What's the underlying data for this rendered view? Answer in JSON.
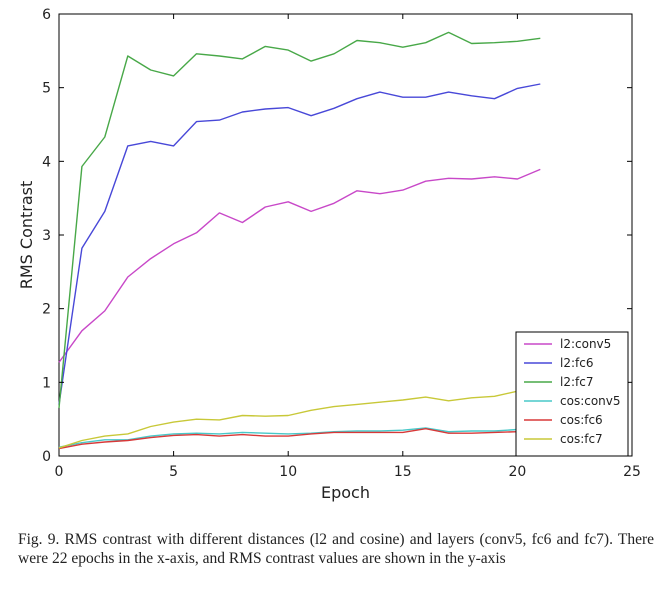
{
  "chart_data": {
    "type": "line",
    "title": "",
    "xlabel": "Epoch",
    "ylabel": "RMS Contrast",
    "xlim": [
      0,
      25
    ],
    "ylim": [
      0,
      6
    ],
    "xticks": [
      "0",
      "5",
      "10",
      "15",
      "20",
      "25"
    ],
    "yticks": [
      "0",
      "1",
      "2",
      "3",
      "4",
      "5",
      "6"
    ],
    "grid": false,
    "legend_position": "bottom-right",
    "x": [
      0,
      1,
      2,
      3,
      4,
      5,
      6,
      7,
      8,
      9,
      10,
      11,
      12,
      13,
      14,
      15,
      16,
      17,
      18,
      19,
      20,
      21
    ],
    "series": [
      {
        "name": "l2:conv5",
        "color": "#c848c8",
        "values": [
          1.27,
          1.7,
          1.97,
          2.43,
          2.68,
          2.88,
          3.03,
          3.3,
          3.17,
          3.38,
          3.45,
          3.32,
          3.43,
          3.6,
          3.56,
          3.61,
          3.73,
          3.77,
          3.76,
          3.79,
          3.76,
          3.89
        ]
      },
      {
        "name": "l2:fc6",
        "color": "#4848d8",
        "values": [
          0.7,
          2.82,
          3.32,
          4.21,
          4.27,
          4.21,
          4.54,
          4.56,
          4.67,
          4.71,
          4.73,
          4.62,
          4.72,
          4.85,
          4.94,
          4.87,
          4.87,
          4.94,
          4.89,
          4.85,
          4.99,
          5.05
        ]
      },
      {
        "name": "l2:fc7",
        "color": "#48a848",
        "values": [
          0.65,
          3.93,
          4.33,
          5.43,
          5.24,
          5.16,
          5.46,
          5.43,
          5.39,
          5.56,
          5.51,
          5.36,
          5.46,
          5.64,
          5.61,
          5.55,
          5.61,
          5.75,
          5.6,
          5.61,
          5.63,
          5.67
        ]
      },
      {
        "name": "cos:conv5",
        "color": "#48c8c8",
        "values": [
          0.12,
          0.18,
          0.22,
          0.22,
          0.27,
          0.3,
          0.31,
          0.3,
          0.32,
          0.31,
          0.3,
          0.31,
          0.33,
          0.34,
          0.34,
          0.35,
          0.38,
          0.33,
          0.34,
          0.34,
          0.36,
          0.38
        ]
      },
      {
        "name": "cos:fc6",
        "color": "#d83838",
        "values": [
          0.1,
          0.16,
          0.19,
          0.21,
          0.25,
          0.28,
          0.29,
          0.27,
          0.29,
          0.27,
          0.27,
          0.3,
          0.32,
          0.32,
          0.32,
          0.32,
          0.37,
          0.31,
          0.31,
          0.32,
          0.33,
          0.35
        ]
      },
      {
        "name": "cos:fc7",
        "color": "#c8c838",
        "values": [
          0.11,
          0.21,
          0.27,
          0.3,
          0.4,
          0.46,
          0.5,
          0.49,
          0.55,
          0.54,
          0.55,
          0.62,
          0.67,
          0.7,
          0.73,
          0.76,
          0.8,
          0.75,
          0.79,
          0.81,
          0.88,
          0.91
        ]
      }
    ]
  },
  "caption": "Fig. 9.  RMS contrast with different distances (l2 and cosine) and layers (conv5, fc6 and fc7). There were 22 epochs in the x-axis, and RMS contrast values are shown in the y-axis"
}
